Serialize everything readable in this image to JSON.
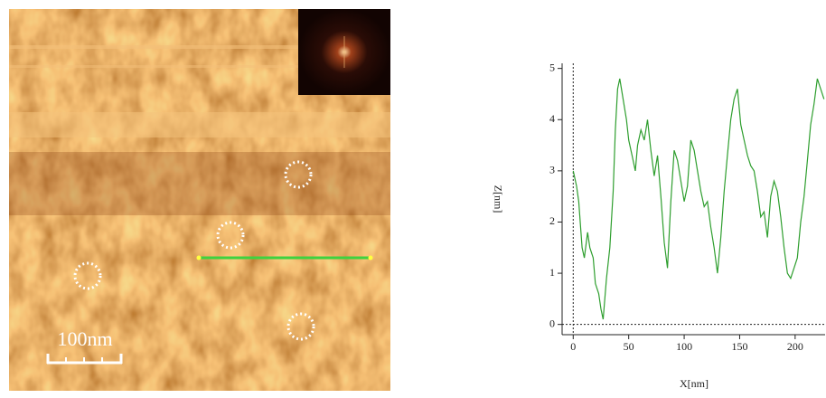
{
  "image": {
    "scale_label": "100nm"
  },
  "chart_data": {
    "type": "line",
    "x_label": "X[nm]",
    "y_label": "Z[nm]",
    "x": [
      0,
      3,
      5,
      8,
      10,
      13,
      15,
      18,
      20,
      23,
      25,
      27,
      30,
      33,
      36,
      38,
      40,
      42,
      45,
      48,
      50,
      53,
      56,
      58,
      61,
      64,
      67,
      70,
      73,
      76,
      79,
      82,
      85,
      88,
      91,
      94,
      97,
      100,
      103,
      106,
      109,
      112,
      115,
      118,
      121,
      124,
      127,
      130,
      133,
      136,
      139,
      142,
      145,
      148,
      151,
      154,
      157,
      160,
      163,
      166,
      169,
      172,
      175,
      178,
      181,
      184,
      187,
      190,
      193,
      196,
      199,
      202,
      205,
      208,
      211,
      214,
      217,
      220,
      223,
      226
    ],
    "series": [
      {
        "color": "#2e9e2e",
        "values": [
          3.0,
          2.7,
          2.4,
          1.5,
          1.3,
          1.8,
          1.5,
          1.3,
          0.8,
          0.6,
          0.3,
          0.1,
          0.9,
          1.5,
          2.6,
          3.8,
          4.6,
          4.8,
          4.4,
          4.0,
          3.6,
          3.3,
          3.0,
          3.5,
          3.8,
          3.6,
          4.0,
          3.4,
          2.9,
          3.3,
          2.5,
          1.6,
          1.1,
          2.4,
          3.4,
          3.2,
          2.8,
          2.4,
          2.7,
          3.6,
          3.4,
          3.0,
          2.6,
          2.3,
          2.4,
          1.9,
          1.5,
          1.0,
          1.7,
          2.6,
          3.3,
          4.0,
          4.4,
          4.6,
          3.9,
          3.6,
          3.3,
          3.1,
          3.0,
          2.6,
          2.1,
          2.2,
          1.7,
          2.5,
          2.8,
          2.6,
          2.1,
          1.5,
          1.0,
          0.9,
          1.1,
          1.3,
          2.0,
          2.5,
          3.2,
          3.9,
          4.3,
          4.8,
          4.6,
          4.4
        ]
      }
    ],
    "xlim": [
      -10,
      227
    ],
    "ylim": [
      -0.2,
      5.1
    ],
    "xticks": [
      0,
      50,
      100,
      150,
      200
    ],
    "yticks": [
      0,
      1,
      2,
      3,
      4,
      5
    ]
  }
}
